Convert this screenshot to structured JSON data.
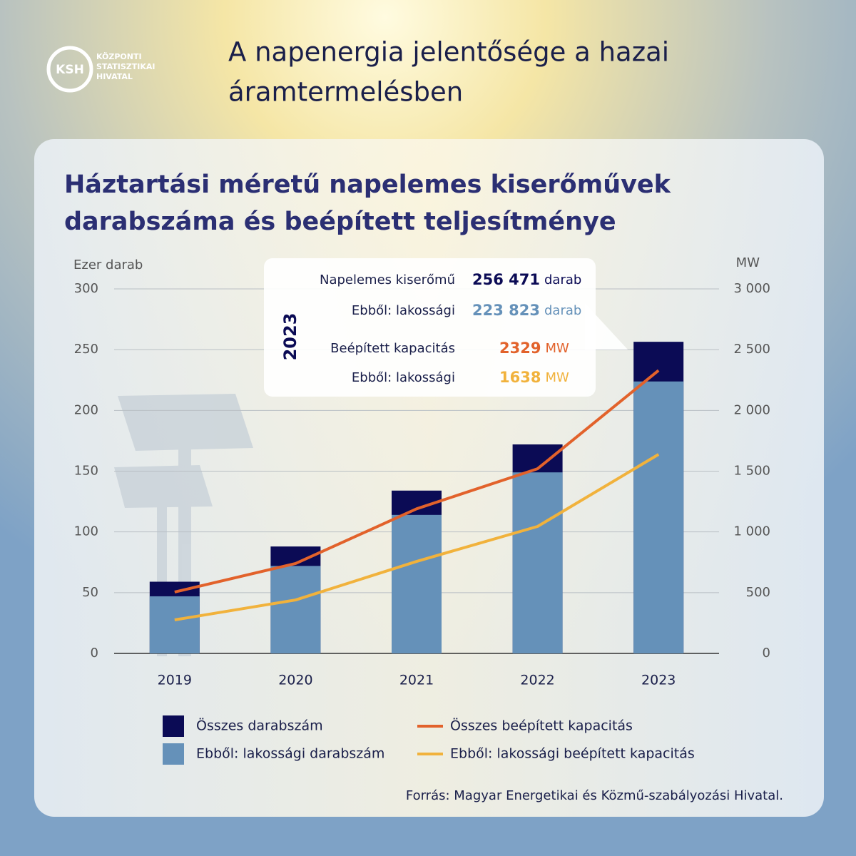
{
  "header": {
    "logo": "KSH",
    "logo_lines": [
      "KÖZPONTI",
      "STATISZTIKAI",
      "HIVATAL"
    ],
    "title_lines": [
      "A napenergia jelentősége a hazai",
      "áramtermelésben"
    ]
  },
  "chart_data": {
    "type": "bar",
    "title_lines": [
      "Háztartási méretű napelemes kiserőművek",
      "darabszáma és beépített teljesítménye"
    ],
    "y_label": "Ezer darab",
    "y2_label": "MW",
    "categories": [
      "2019",
      "2020",
      "2021",
      "2022",
      "2023"
    ],
    "series": [
      {
        "name": "Összes darabszám",
        "type": "bar",
        "color": "#0b0b55",
        "values": [
          59,
          88,
          134,
          172,
          256.471
        ]
      },
      {
        "name": "Ebből: lakossági darabszám",
        "type": "bar",
        "color": "#6591b9",
        "values": [
          47,
          72,
          114,
          149,
          223.823
        ]
      },
      {
        "name": "Összes beépített kapacitás",
        "type": "line",
        "axis": "y2",
        "color": "#e2622b",
        "values": [
          505,
          740,
          1190,
          1520,
          2329
        ]
      },
      {
        "name": "Ebből: lakossági beépített kapacitás",
        "type": "line",
        "axis": "y2",
        "color": "#f1b23c",
        "values": [
          276,
          440,
          757,
          1045,
          1638
        ]
      }
    ],
    "ylim": [
      0,
      300
    ],
    "yticks": [
      0,
      50,
      100,
      150,
      200,
      250,
      300
    ],
    "y2lim": [
      0,
      3000
    ],
    "y2ticks": [
      0,
      500,
      {
        "value": 1000,
        "label": "1 000"
      },
      {
        "value": 1500,
        "label": "1 500"
      },
      {
        "value": 2000,
        "label": "2 000"
      },
      {
        "value": 2500,
        "label": "2 500"
      },
      {
        "value": 3000,
        "label": "3 000"
      }
    ],
    "grid": true,
    "callout": {
      "year": "2023",
      "rows": [
        {
          "label": "Napelemes kiserőmű",
          "value": "256 471",
          "unit": "darab",
          "color": "#0b0b55"
        },
        {
          "label": "Ebből: lakossági",
          "value": "223 823",
          "unit": "darab",
          "color": "#6591b9"
        },
        {
          "label": "Beépített kapacitás",
          "value": "2329",
          "unit": "MW",
          "color": "#e2622b"
        },
        {
          "label": "Ebből: lakossági",
          "value": "1638",
          "unit": "MW",
          "color": "#f1b23c"
        }
      ]
    },
    "source": "Forrás: Magyar Energetikai és Közmű-szabályozási Hivatal."
  }
}
